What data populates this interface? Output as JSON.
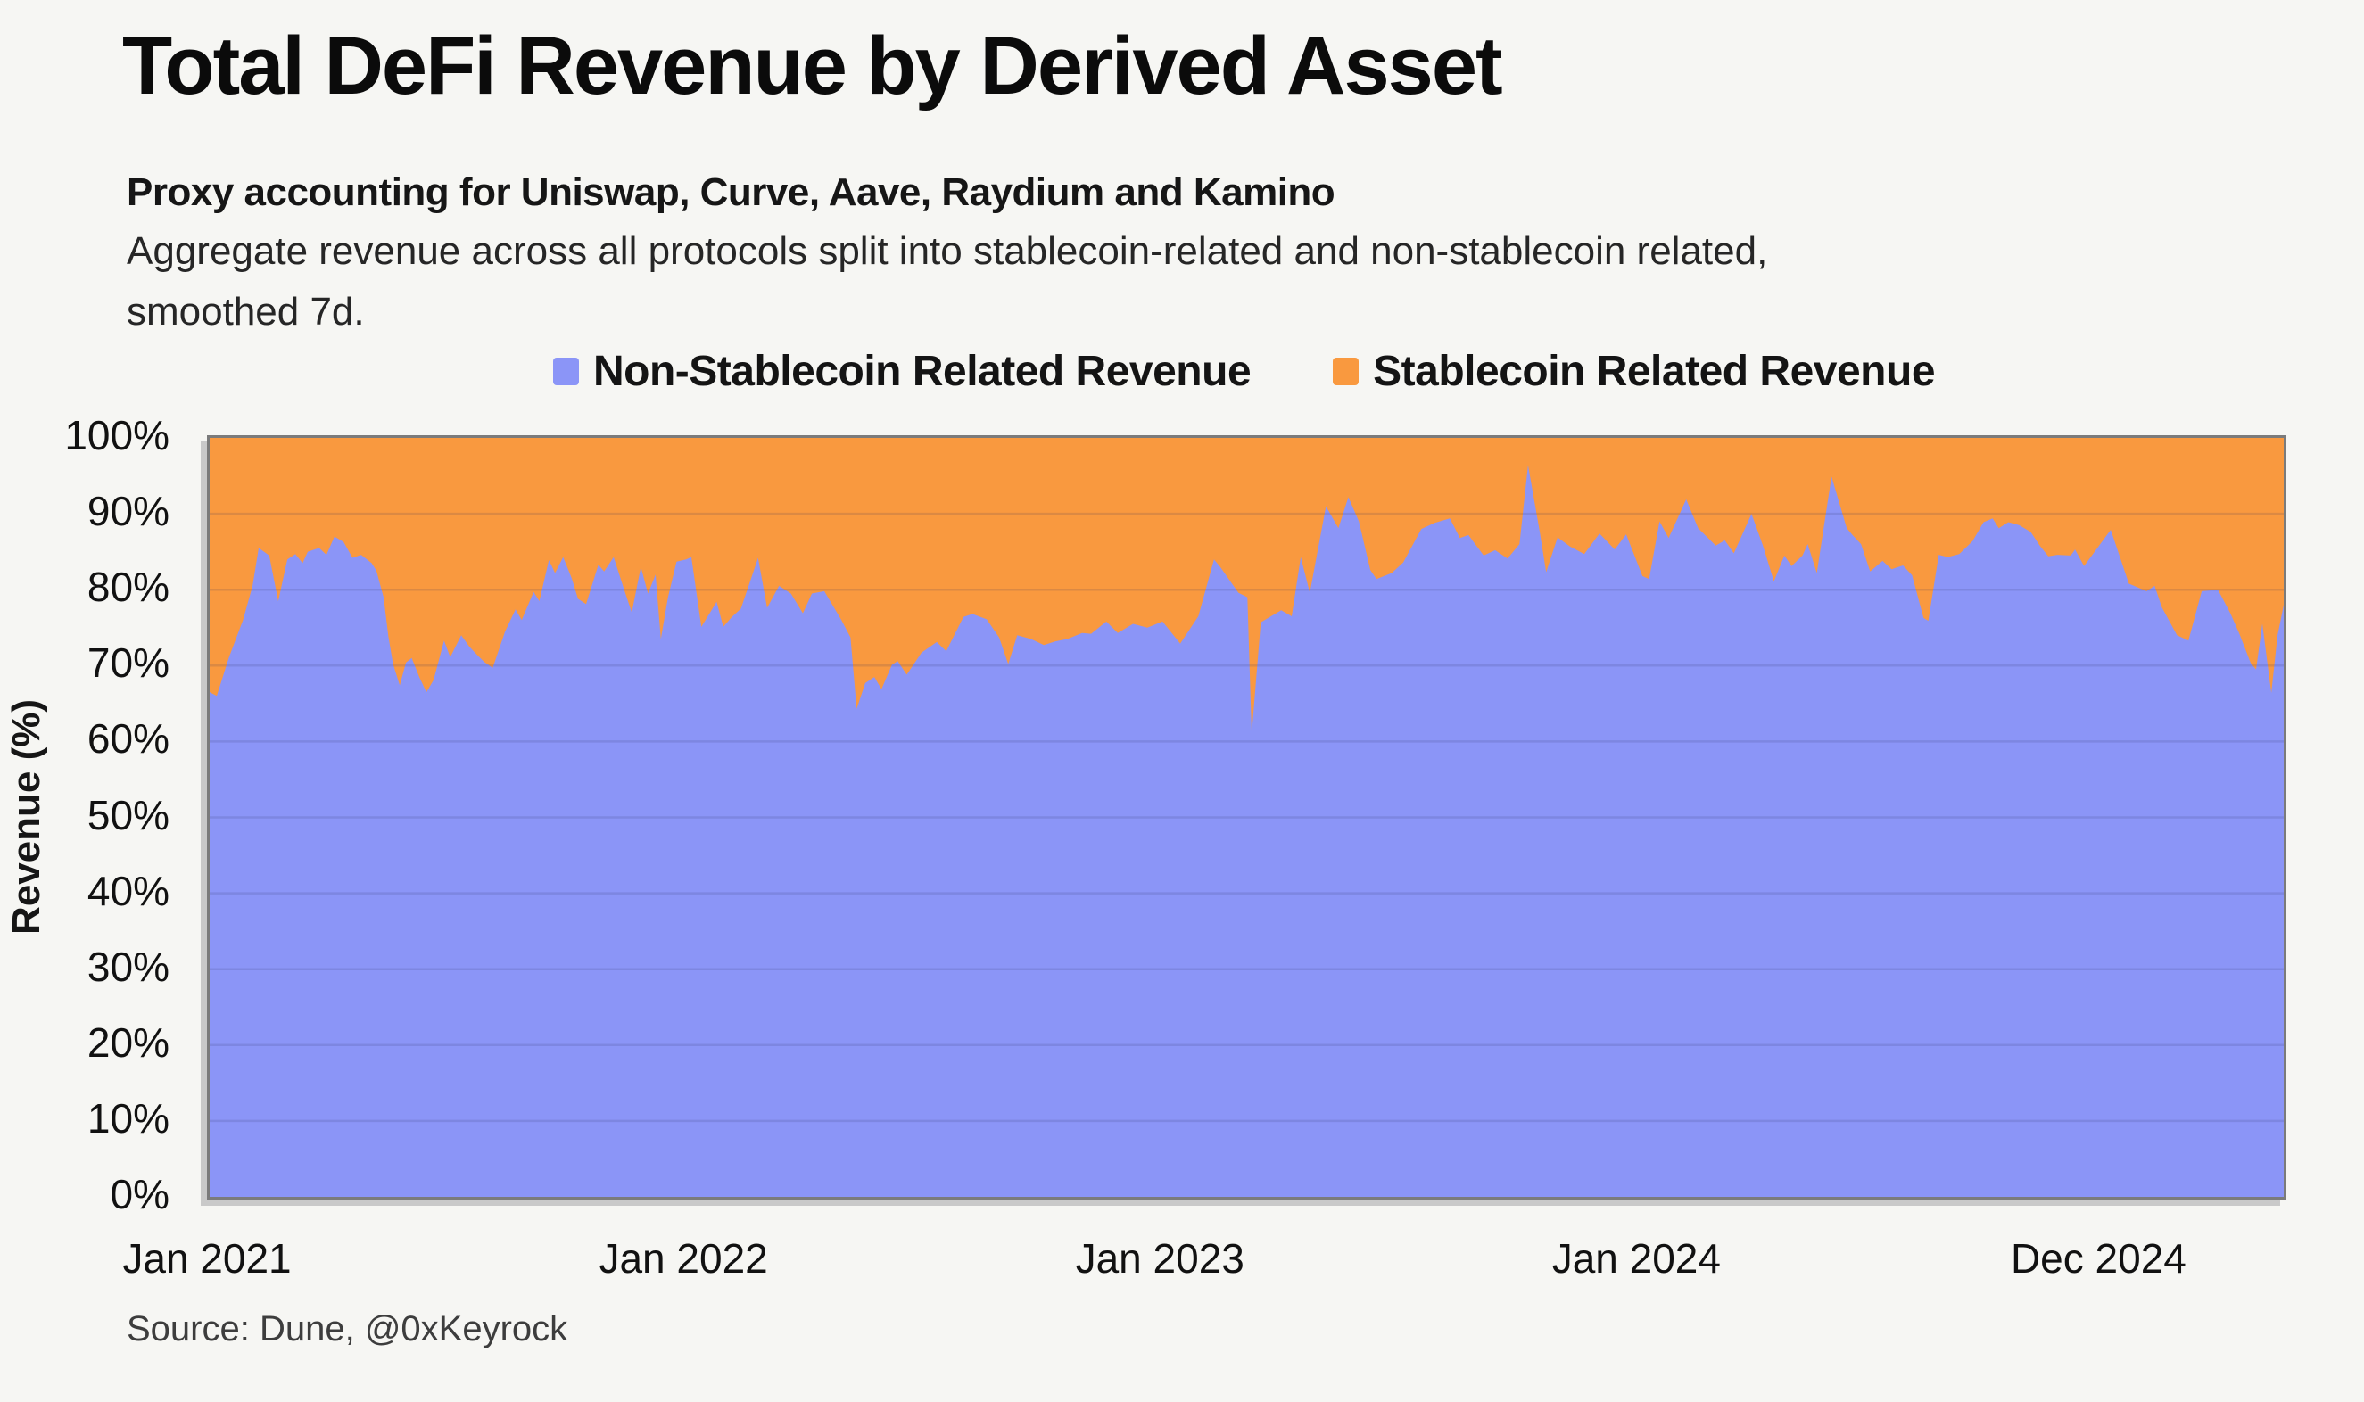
{
  "title": "Total DeFi Revenue by Derived Asset",
  "subtitle": "Proxy accounting for Uniswap, Curve, Aave, Raydium and Kamino",
  "description_line1": "Aggregate revenue across all protocols split into stablecoin-related and non-stablecoin related,",
  "description_line2": "smoothed 7d.",
  "source": "Source: Dune, @0xKeyrock",
  "colors": {
    "background": "#f6f6f3",
    "non_stablecoin_fill": "#8B95F7",
    "stablecoin_fill": "#F9993F",
    "plot_border": "#7b7b7b",
    "plot_shadow": "#c9c9c9",
    "gridline": "rgba(45,45,90,0.14)",
    "text": "#111111"
  },
  "legend": [
    {
      "label": "Non-Stablecoin Related Revenue",
      "color": "#8B95F7"
    },
    {
      "label": "Stablecoin Related Revenue",
      "color": "#F9993F"
    }
  ],
  "chart_data": {
    "type": "area",
    "stacked": true,
    "title": "Total DeFi Revenue by Derived Asset",
    "xlabel": "",
    "ylabel": "Revenue (%)",
    "ylim": [
      0,
      100
    ],
    "grid": true,
    "legend_position": "top-center",
    "x_unit": "years_since_jan_2021",
    "x_range_years": [
      0,
      4.353
    ],
    "y_ticks": [
      {
        "label": "100%",
        "value": 100
      },
      {
        "label": "90%",
        "value": 90
      },
      {
        "label": "80%",
        "value": 80
      },
      {
        "label": "70%",
        "value": 70
      },
      {
        "label": "60%",
        "value": 60
      },
      {
        "label": "50%",
        "value": 50
      },
      {
        "label": "40%",
        "value": 40
      },
      {
        "label": "30%",
        "value": 30
      },
      {
        "label": "20%",
        "value": 20
      },
      {
        "label": "10%",
        "value": 10
      },
      {
        "label": "0%",
        "value": 0
      }
    ],
    "x_ticks": [
      {
        "label": "Jan 2021",
        "t": 0
      },
      {
        "label": "Jan 2022",
        "t": 1
      },
      {
        "label": "Jan 2023",
        "t": 2
      },
      {
        "label": "Jan 2024",
        "t": 3
      },
      {
        "label": "Dec 2024",
        "t": 3.97
      }
    ],
    "series": [
      {
        "name": "Non-Stablecoin Related Revenue",
        "color": "#8B95F7",
        "unit": "percent_share",
        "points": [
          [
            0.0,
            66.5
          ],
          [
            0.015,
            66.0
          ],
          [
            0.04,
            71.0
          ],
          [
            0.07,
            76.0
          ],
          [
            0.09,
            80.5
          ],
          [
            0.103,
            85.5
          ],
          [
            0.125,
            84.5
          ],
          [
            0.144,
            78.5
          ],
          [
            0.163,
            84.0
          ],
          [
            0.18,
            84.7
          ],
          [
            0.195,
            83.5
          ],
          [
            0.206,
            85.0
          ],
          [
            0.23,
            85.5
          ],
          [
            0.245,
            84.6
          ],
          [
            0.262,
            87.0
          ],
          [
            0.281,
            86.3
          ],
          [
            0.3,
            84.2
          ],
          [
            0.318,
            84.6
          ],
          [
            0.34,
            83.5
          ],
          [
            0.35,
            82.5
          ],
          [
            0.365,
            79.0
          ],
          [
            0.375,
            73.9
          ],
          [
            0.385,
            70.2
          ],
          [
            0.399,
            67.4
          ],
          [
            0.412,
            70.4
          ],
          [
            0.424,
            71.0
          ],
          [
            0.44,
            68.5
          ],
          [
            0.455,
            66.5
          ],
          [
            0.47,
            68.1
          ],
          [
            0.492,
            73.3
          ],
          [
            0.505,
            71.1
          ],
          [
            0.528,
            74.0
          ],
          [
            0.545,
            72.5
          ],
          [
            0.56,
            71.5
          ],
          [
            0.576,
            70.5
          ],
          [
            0.594,
            69.7
          ],
          [
            0.62,
            74.5
          ],
          [
            0.642,
            77.4
          ],
          [
            0.655,
            76.0
          ],
          [
            0.68,
            79.7
          ],
          [
            0.692,
            78.5
          ],
          [
            0.712,
            83.9
          ],
          [
            0.725,
            82.2
          ],
          [
            0.742,
            84.3
          ],
          [
            0.76,
            81.5
          ],
          [
            0.773,
            78.8
          ],
          [
            0.79,
            78.1
          ],
          [
            0.816,
            83.3
          ],
          [
            0.828,
            82.4
          ],
          [
            0.848,
            84.3
          ],
          [
            0.87,
            80.0
          ],
          [
            0.886,
            77.0
          ],
          [
            0.905,
            83.0
          ],
          [
            0.92,
            79.5
          ],
          [
            0.936,
            82.0
          ],
          [
            0.947,
            73.5
          ],
          [
            0.962,
            79.0
          ],
          [
            0.98,
            83.7
          ],
          [
            1.0,
            84.0
          ],
          [
            1.011,
            84.3
          ],
          [
            1.032,
            75.1
          ],
          [
            1.064,
            78.4
          ],
          [
            1.078,
            75.1
          ],
          [
            1.096,
            76.4
          ],
          [
            1.115,
            77.5
          ],
          [
            1.151,
            84.2
          ],
          [
            1.17,
            77.6
          ],
          [
            1.195,
            80.5
          ],
          [
            1.22,
            79.5
          ],
          [
            1.245,
            76.9
          ],
          [
            1.264,
            79.5
          ],
          [
            1.29,
            79.8
          ],
          [
            1.326,
            76.0
          ],
          [
            1.345,
            73.7
          ],
          [
            1.358,
            64.3
          ],
          [
            1.376,
            67.7
          ],
          [
            1.395,
            68.5
          ],
          [
            1.41,
            66.9
          ],
          [
            1.432,
            70.1
          ],
          [
            1.444,
            70.6
          ],
          [
            1.463,
            68.8
          ],
          [
            1.494,
            71.7
          ],
          [
            1.526,
            73.1
          ],
          [
            1.546,
            71.9
          ],
          [
            1.582,
            76.4
          ],
          [
            1.601,
            76.8
          ],
          [
            1.631,
            76.1
          ],
          [
            1.657,
            73.7
          ],
          [
            1.676,
            70.2
          ],
          [
            1.695,
            74.0
          ],
          [
            1.724,
            73.5
          ],
          [
            1.751,
            72.7
          ],
          [
            1.775,
            73.2
          ],
          [
            1.8,
            73.5
          ],
          [
            1.831,
            74.3
          ],
          [
            1.85,
            74.2
          ],
          [
            1.882,
            75.8
          ],
          [
            1.906,
            74.3
          ],
          [
            1.938,
            75.5
          ],
          [
            1.968,
            75.0
          ],
          [
            2.0,
            75.8
          ],
          [
            2.037,
            72.9
          ],
          [
            2.075,
            76.5
          ],
          [
            2.108,
            84.0
          ],
          [
            2.121,
            83.0
          ],
          [
            2.159,
            79.6
          ],
          [
            2.178,
            79.0
          ],
          [
            2.187,
            61.0
          ],
          [
            2.206,
            75.7
          ],
          [
            2.249,
            77.3
          ],
          [
            2.271,
            76.5
          ],
          [
            2.29,
            84.3
          ],
          [
            2.309,
            79.6
          ],
          [
            2.343,
            91.0
          ],
          [
            2.369,
            88.1
          ],
          [
            2.39,
            92.2
          ],
          [
            2.412,
            89.0
          ],
          [
            2.436,
            82.6
          ],
          [
            2.449,
            81.4
          ],
          [
            2.481,
            82.2
          ],
          [
            2.505,
            83.6
          ],
          [
            2.543,
            88.0
          ],
          [
            2.571,
            88.8
          ],
          [
            2.603,
            89.4
          ],
          [
            2.624,
            86.8
          ],
          [
            2.642,
            87.2
          ],
          [
            2.674,
            84.5
          ],
          [
            2.698,
            85.2
          ],
          [
            2.724,
            84.1
          ],
          [
            2.749,
            86.0
          ],
          [
            2.767,
            96.4
          ],
          [
            2.792,
            87.5
          ],
          [
            2.805,
            82.3
          ],
          [
            2.829,
            86.9
          ],
          [
            2.855,
            85.7
          ],
          [
            2.885,
            84.7
          ],
          [
            2.917,
            87.4
          ],
          [
            2.949,
            85.3
          ],
          [
            2.973,
            87.3
          ],
          [
            3.007,
            81.8
          ],
          [
            3.021,
            81.4
          ],
          [
            3.043,
            89.0
          ],
          [
            3.062,
            86.8
          ],
          [
            3.099,
            91.9
          ],
          [
            3.124,
            88.1
          ],
          [
            3.161,
            85.8
          ],
          [
            3.18,
            86.5
          ],
          [
            3.199,
            84.8
          ],
          [
            3.236,
            90.0
          ],
          [
            3.26,
            85.8
          ],
          [
            3.283,
            81.1
          ],
          [
            3.305,
            84.5
          ],
          [
            3.32,
            83.1
          ],
          [
            3.343,
            84.5
          ],
          [
            3.354,
            86.0
          ],
          [
            3.373,
            82.2
          ],
          [
            3.404,
            94.9
          ],
          [
            3.436,
            88.1
          ],
          [
            3.448,
            87.2
          ],
          [
            3.466,
            86.0
          ],
          [
            3.485,
            82.4
          ],
          [
            3.511,
            83.8
          ],
          [
            3.53,
            82.7
          ],
          [
            3.554,
            83.2
          ],
          [
            3.573,
            81.9
          ],
          [
            3.597,
            76.3
          ],
          [
            3.607,
            75.9
          ],
          [
            3.629,
            84.6
          ],
          [
            3.648,
            84.3
          ],
          [
            3.672,
            84.7
          ],
          [
            3.7,
            86.4
          ],
          [
            3.723,
            88.9
          ],
          [
            3.742,
            89.4
          ],
          [
            3.755,
            88.1
          ],
          [
            3.775,
            88.9
          ],
          [
            3.798,
            88.5
          ],
          [
            3.822,
            87.6
          ],
          [
            3.841,
            85.8
          ],
          [
            3.859,
            84.4
          ],
          [
            3.878,
            84.6
          ],
          [
            3.906,
            84.5
          ],
          [
            3.915,
            85.3
          ],
          [
            3.934,
            83.1
          ],
          [
            3.99,
            87.9
          ],
          [
            4.028,
            80.8
          ],
          [
            4.065,
            79.8
          ],
          [
            4.082,
            80.5
          ],
          [
            4.097,
            77.7
          ],
          [
            4.129,
            74.0
          ],
          [
            4.153,
            73.3
          ],
          [
            4.181,
            79.8
          ],
          [
            4.215,
            80.0
          ],
          [
            4.241,
            76.9
          ],
          [
            4.26,
            74.2
          ],
          [
            4.284,
            70.3
          ],
          [
            4.295,
            69.5
          ],
          [
            4.308,
            75.5
          ],
          [
            4.327,
            66.4
          ],
          [
            4.34,
            74.0
          ],
          [
            4.353,
            78.0
          ]
        ]
      },
      {
        "name": "Stablecoin Related Revenue",
        "color": "#F9993F",
        "unit": "percent_share",
        "definition": "100 minus Non-Stablecoin Related Revenue (stacked remainder to 100%)"
      }
    ]
  }
}
